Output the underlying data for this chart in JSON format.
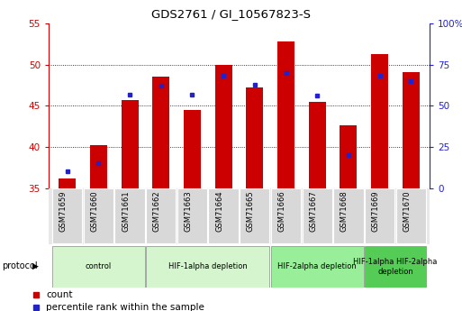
{
  "title": "GDS2761 / GI_10567823-S",
  "samples": [
    "GSM71659",
    "GSM71660",
    "GSM71661",
    "GSM71662",
    "GSM71663",
    "GSM71664",
    "GSM71665",
    "GSM71666",
    "GSM71667",
    "GSM71668",
    "GSM71669",
    "GSM71670"
  ],
  "counts": [
    36.2,
    40.2,
    45.7,
    48.5,
    44.5,
    50.0,
    47.2,
    52.8,
    45.5,
    42.6,
    51.3,
    49.1
  ],
  "percentile_ranks": [
    10,
    15,
    57,
    62,
    57,
    68,
    63,
    70,
    56,
    20,
    68,
    65
  ],
  "ylim_left": [
    35,
    55
  ],
  "ylim_right": [
    0,
    100
  ],
  "yticks_left": [
    35,
    40,
    45,
    50,
    55
  ],
  "yticks_right": [
    0,
    25,
    50,
    75,
    100
  ],
  "ytick_labels_right": [
    "0",
    "25",
    "50",
    "75",
    "100%"
  ],
  "bar_color": "#cc0000",
  "dot_color": "#2222cc",
  "bar_width": 0.55,
  "group_info": [
    {
      "start": 0,
      "end": 2,
      "label": "control",
      "color": "#d4f5ce"
    },
    {
      "start": 3,
      "end": 6,
      "label": "HIF-1alpha depletion",
      "color": "#d4f5ce"
    },
    {
      "start": 7,
      "end": 9,
      "label": "HIF-2alpha depletion",
      "color": "#99ee99"
    },
    {
      "start": 10,
      "end": 11,
      "label": "HIF-1alpha HIF-2alpha\ndepletion",
      "color": "#55cc55"
    }
  ],
  "left_axis_color": "#cc0000",
  "right_axis_color": "#2222cc",
  "background_color": "#ffffff",
  "cell_color": "#d8d8d8",
  "cell_border": "#ffffff"
}
